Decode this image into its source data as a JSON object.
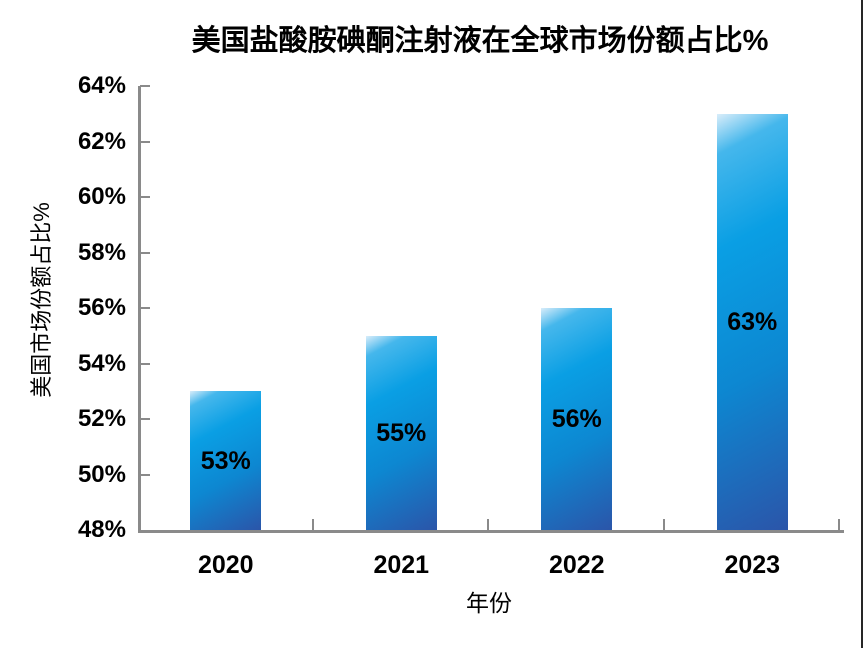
{
  "page": {
    "background": "#ffffff",
    "frame_border_color": "#262626"
  },
  "chart_data": {
    "type": "bar",
    "title": "美国盐酸胺碘酮注射液在全球市场份额占比%",
    "categories": [
      "2020",
      "2021",
      "2022",
      "2023"
    ],
    "values": [
      53,
      55,
      56,
      63
    ],
    "data_labels": [
      "53%",
      "55%",
      "56%",
      "63%"
    ],
    "xlabel": "年份",
    "ylabel": "美国市场份额占比%",
    "ylim": [
      48,
      64
    ],
    "ytick_step": 2,
    "ytick_labels": [
      "48%",
      "50%",
      "52%",
      "54%",
      "56%",
      "58%",
      "60%",
      "62%",
      "64%"
    ],
    "grid": false,
    "legend": false,
    "label_position": "bar-center",
    "axis_color": "#8a8a8a",
    "text_color": "#000000",
    "bar_gradient": [
      "#d9edfa",
      "#45b7ec",
      "#0a9fe4",
      "#0d87d1",
      "#2b55a9"
    ]
  }
}
